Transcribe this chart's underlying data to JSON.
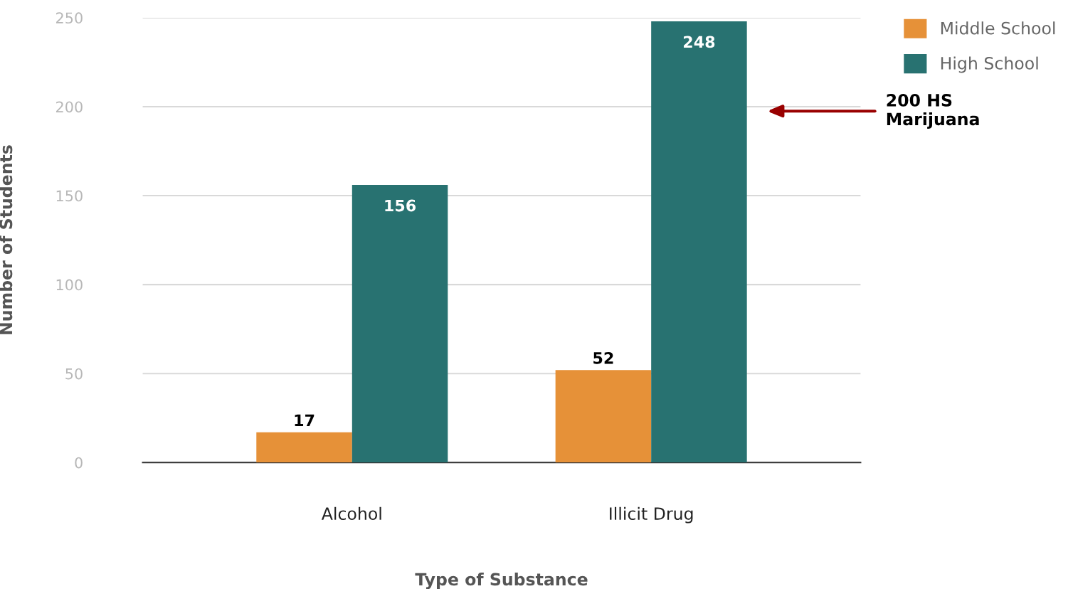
{
  "chart_data": {
    "type": "bar",
    "xlabel": "Type of Substance",
    "ylabel": "Number of Students",
    "categories": [
      "Alcohol",
      "Illicit Drug"
    ],
    "series": [
      {
        "name": "Middle School",
        "color": "#e69138",
        "values": [
          17,
          52
        ]
      },
      {
        "name": "High School",
        "color": "#287271",
        "values": [
          156,
          248
        ]
      }
    ],
    "ylim": [
      0,
      250
    ],
    "yticks": [
      0,
      50,
      100,
      150,
      200,
      250
    ],
    "grid": "y",
    "legend": "top right",
    "data_labels": true,
    "annotations": [
      "200 HS\nMarijuana"
    ]
  }
}
